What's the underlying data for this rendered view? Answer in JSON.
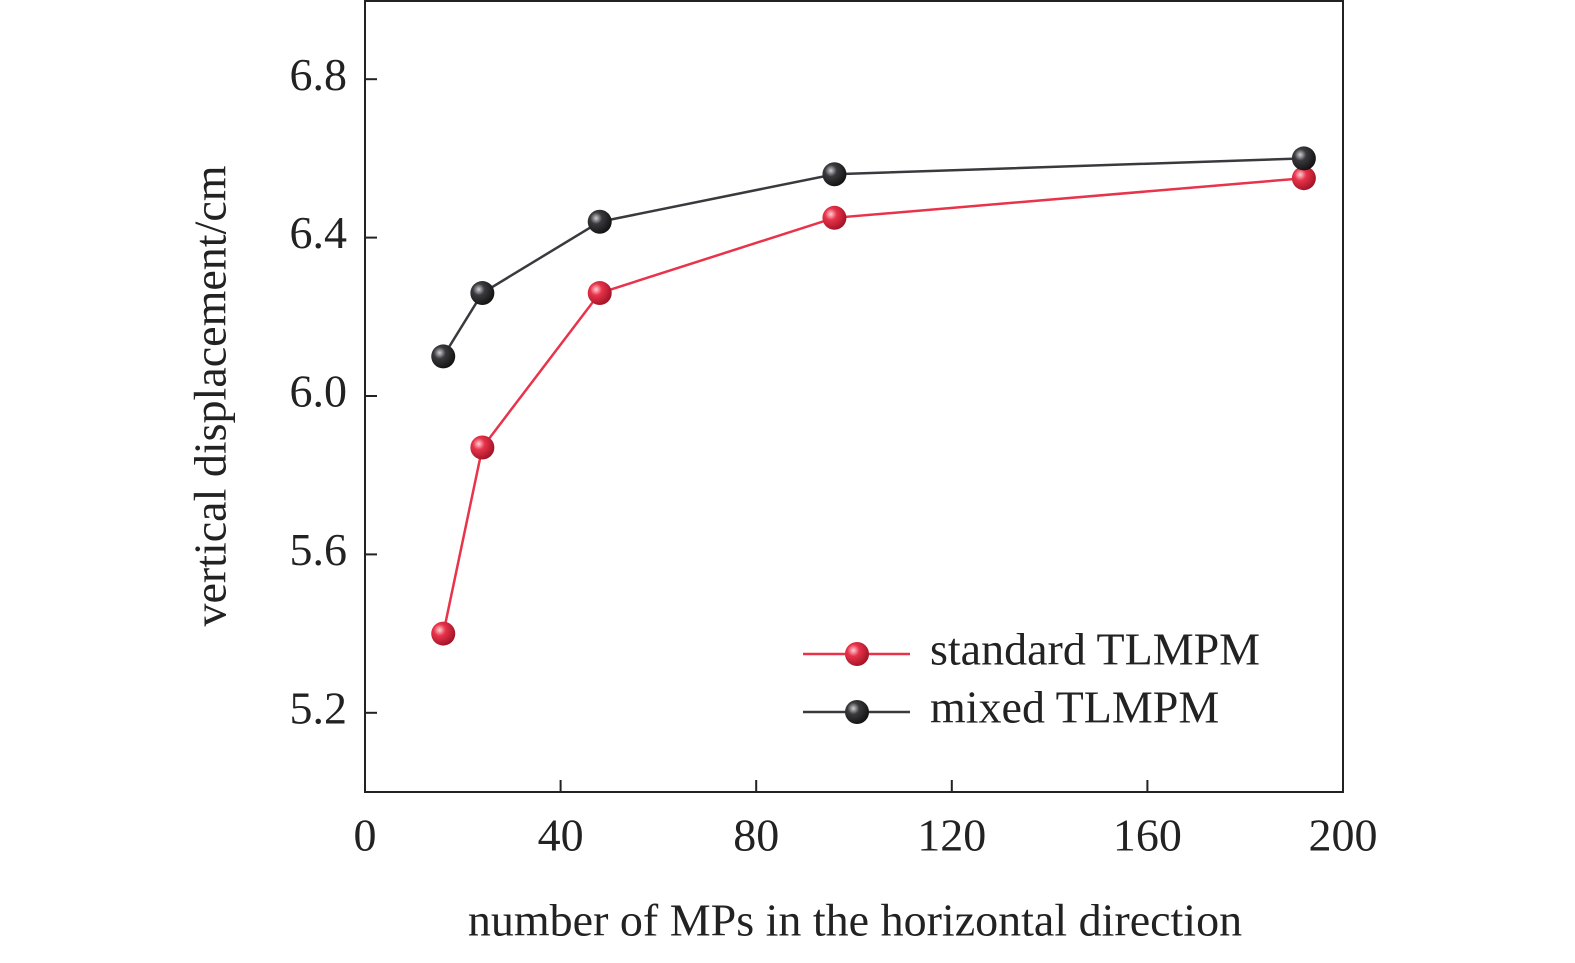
{
  "chart_data": {
    "type": "line",
    "x_label": "number of MPs in the horizontal direction",
    "y_label": "vertical displacement/cm",
    "x": [
      16,
      24,
      48,
      96,
      192
    ],
    "series": [
      {
        "name": "standard TLMPM",
        "color": "#e8334a",
        "values": [
          5.4,
          5.87,
          6.26,
          6.45,
          6.55
        ]
      },
      {
        "name": "mixed TLMPM",
        "color": "#3a3a3e",
        "values": [
          6.1,
          6.26,
          6.44,
          6.56,
          6.6
        ]
      }
    ],
    "xlim": [
      0,
      200
    ],
    "xticks": [
      0,
      40,
      80,
      120,
      160,
      200
    ],
    "ylim": [
      5.0,
      7.0
    ],
    "yticks": [
      5.2,
      5.6,
      {
        "value": 6,
        "label": "6.0"
      },
      6.4,
      6.8
    ],
    "grid": false,
    "legend": "lower right"
  }
}
